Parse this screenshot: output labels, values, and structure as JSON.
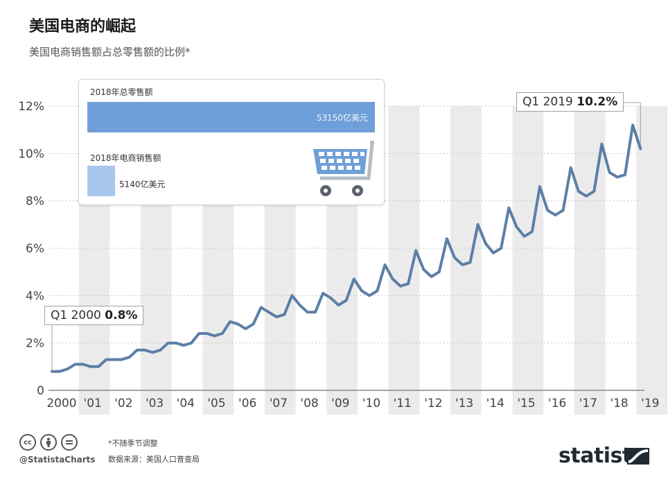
{
  "title": "美国电商的崛起",
  "subtitle": "美国电商销售额占总零售额的比例*",
  "info": {
    "total_label": "2018年总零售额",
    "total_value": "53150亿美元",
    "ecom_label": "2018年电商销售额",
    "ecom_value": "5140亿美元",
    "icon": "shopping-cart-icon"
  },
  "callouts": {
    "start": {
      "label": "Q1 2000",
      "value": "0.8%"
    },
    "end": {
      "label": "Q1 2019",
      "value": "10.2%"
    }
  },
  "footer": {
    "note": "*不随季节调整",
    "source": "数据来源：美国人口普查局",
    "handle": "@StatistaCharts",
    "brand": "statista",
    "license_icons": [
      "cc",
      "by",
      "nd"
    ]
  },
  "colors": {
    "line": "#5b7fa6",
    "band": "#ebebeb",
    "bar_total": "#6f9fd8",
    "bar_ecom": "#a9c7ec"
  },
  "chart_data": {
    "type": "line",
    "x_tick_labels": [
      "2000",
      "'01",
      "'02",
      "'03",
      "'04",
      "'05",
      "'06",
      "'07",
      "'08",
      "'09",
      "'10",
      "'11",
      "'12",
      "'13",
      "'14",
      "'15",
      "'16",
      "'17",
      "'18",
      "'19"
    ],
    "y_tick_labels": [
      "0",
      "2%",
      "4%",
      "6%",
      "8%",
      "10%",
      "12%"
    ],
    "ylim": [
      0,
      12
    ],
    "series": [
      {
        "values": [
          0.8,
          0.8,
          0.9,
          1.1,
          1.1,
          1.0,
          1.0,
          1.3,
          1.3,
          1.3,
          1.4,
          1.7,
          1.7,
          1.6,
          1.7,
          2.0,
          2.0,
          1.9,
          2.0,
          2.4,
          2.4,
          2.3,
          2.4,
          2.9,
          2.8,
          2.6,
          2.8,
          3.5,
          3.3,
          3.1,
          3.2,
          4.0,
          3.6,
          3.3,
          3.3,
          4.1,
          3.9,
          3.6,
          3.8,
          4.7,
          4.2,
          4.0,
          4.2,
          5.3,
          4.7,
          4.4,
          4.5,
          5.9,
          5.1,
          4.8,
          5.0,
          6.4,
          5.6,
          5.3,
          5.4,
          7.0,
          6.2,
          5.8,
          6.0,
          7.7,
          6.9,
          6.5,
          6.7,
          8.6,
          7.6,
          7.4,
          7.6,
          9.4,
          8.4,
          8.2,
          8.4,
          10.4,
          9.2,
          9.0,
          9.1,
          11.2,
          10.2
        ]
      }
    ],
    "grid": true
  }
}
